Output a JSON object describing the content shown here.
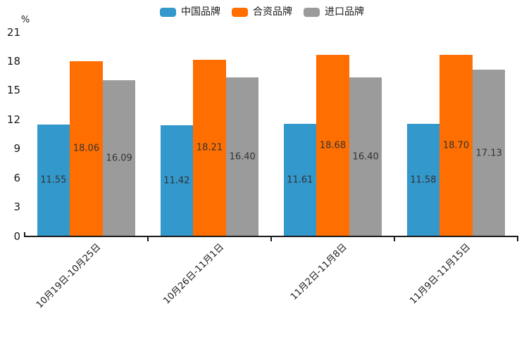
{
  "chart_data": {
    "type": "bar",
    "title": "",
    "xlabel": "",
    "ylabel": "%",
    "categories": [
      "10月19日-10月25日",
      "10月26日-11月1日",
      "11月2日-11月8日",
      "11月9日-11月15日"
    ],
    "series": [
      {
        "name": "中国品牌",
        "color": "#3398cc",
        "values": [
          11.55,
          11.42,
          11.61,
          11.58
        ]
      },
      {
        "name": "合资品牌",
        "color": "#ff6e00",
        "values": [
          18.06,
          18.21,
          18.68,
          18.7
        ]
      },
      {
        "name": "进口品牌",
        "color": "#9b9b9b",
        "values": [
          16.09,
          16.4,
          16.4,
          17.13
        ]
      }
    ],
    "y_ticks": [
      0,
      3,
      6,
      9,
      12,
      15,
      18,
      21
    ],
    "ylim": [
      0,
      21
    ],
    "legend_position": "top",
    "grid": false,
    "value_label_decimals": 2
  },
  "colors": {
    "axis": "#1a1a1a",
    "tick_label": "#1a1a1a",
    "value_label": "#333333",
    "background": "#ffffff"
  }
}
